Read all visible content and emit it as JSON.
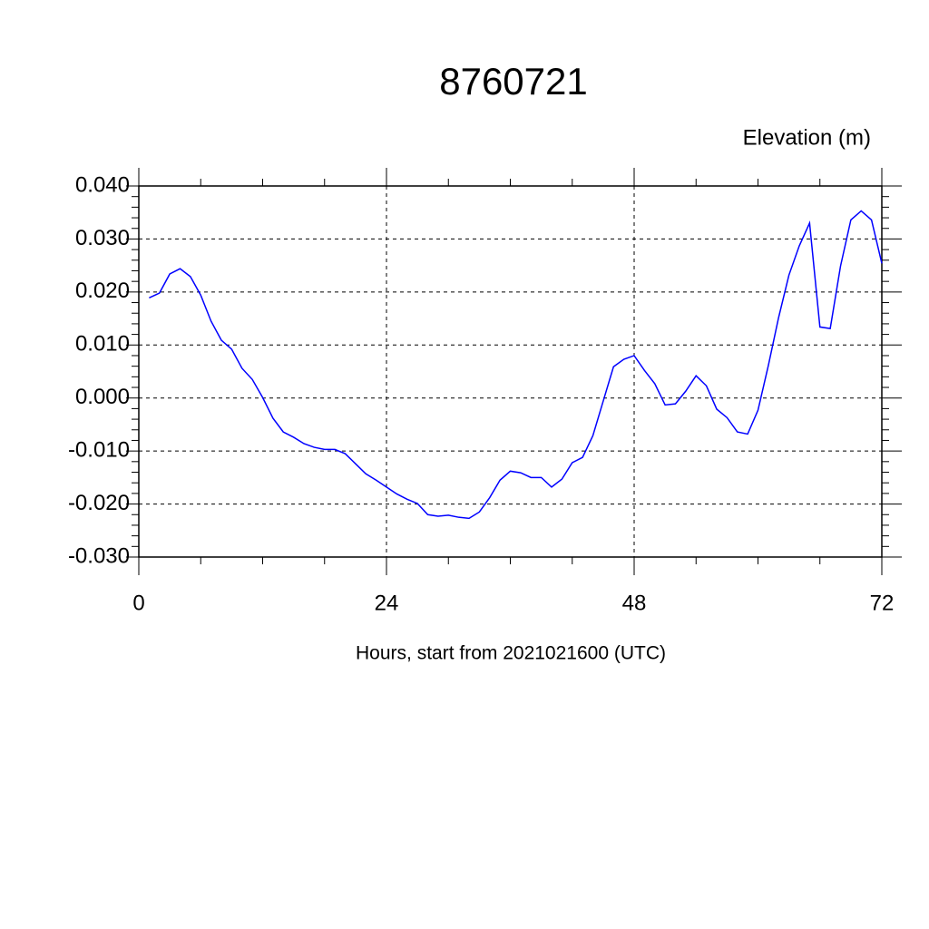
{
  "chart_data": {
    "type": "line",
    "title": "8760721",
    "y_label": "Elevation (m)",
    "x_label": "Hours, start from 2021021600 (UTC)",
    "x": [
      1,
      2,
      3,
      4,
      5,
      6,
      7,
      8,
      9,
      10,
      11,
      12,
      13,
      14,
      15,
      16,
      17,
      18,
      19,
      20,
      21,
      22,
      23,
      24,
      25,
      26,
      27,
      28,
      29,
      30,
      31,
      32,
      33,
      34,
      35,
      36,
      37,
      38,
      39,
      40,
      41,
      42,
      43,
      44,
      45,
      46,
      47,
      48,
      49,
      50,
      51,
      52,
      53,
      54,
      55,
      56,
      57,
      58,
      59,
      60,
      61,
      62,
      63,
      64,
      65,
      66,
      67,
      68,
      69,
      70,
      71,
      72
    ],
    "series": [
      {
        "color": "#0000ff",
        "values": [
          0.0189,
          0.0198,
          0.0234,
          0.0244,
          0.0229,
          0.0194,
          0.0145,
          0.0109,
          0.0092,
          0.0056,
          0.0035,
          0.0001,
          -0.0038,
          -0.0064,
          -0.0074,
          -0.0086,
          -0.0093,
          -0.0097,
          -0.0097,
          -0.0105,
          -0.0124,
          -0.0143,
          -0.0155,
          -0.0168,
          -0.0181,
          -0.0191,
          -0.0199,
          -0.022,
          -0.0223,
          -0.0221,
          -0.0225,
          -0.0227,
          -0.0215,
          -0.0188,
          -0.0155,
          -0.0138,
          -0.0141,
          -0.015,
          -0.015,
          -0.0168,
          -0.0153,
          -0.0122,
          -0.0112,
          -0.0071,
          -0.0006,
          0.0059,
          0.0073,
          0.008,
          0.0052,
          0.0027,
          -0.0013,
          -0.0011,
          0.0013,
          0.0042,
          0.0023,
          -0.0021,
          -0.0037,
          -0.0064,
          -0.0068,
          -0.0023,
          0.0061,
          0.0152,
          0.0232,
          0.0287,
          0.033,
          0.0134,
          0.0131,
          0.0249,
          0.0336,
          0.0353,
          0.0336,
          0.0254
        ]
      }
    ],
    "xlim": [
      0,
      72
    ],
    "xticks": [
      0,
      24,
      48,
      72
    ],
    "ylim": [
      -0.03,
      0.04
    ],
    "yticks": [
      {
        "value": -0.03,
        "label": "-0.030"
      },
      {
        "value": -0.02,
        "label": "-0.020"
      },
      {
        "value": -0.01,
        "label": "-0.010"
      },
      {
        "value": 0,
        "label": "0.000"
      },
      {
        "value": 0.01,
        "label": "0.010"
      },
      {
        "value": 0.02,
        "label": "0.020"
      },
      {
        "value": 0.03,
        "label": "0.030"
      },
      {
        "value": 0.04,
        "label": "0.040"
      }
    ],
    "grid": true
  }
}
